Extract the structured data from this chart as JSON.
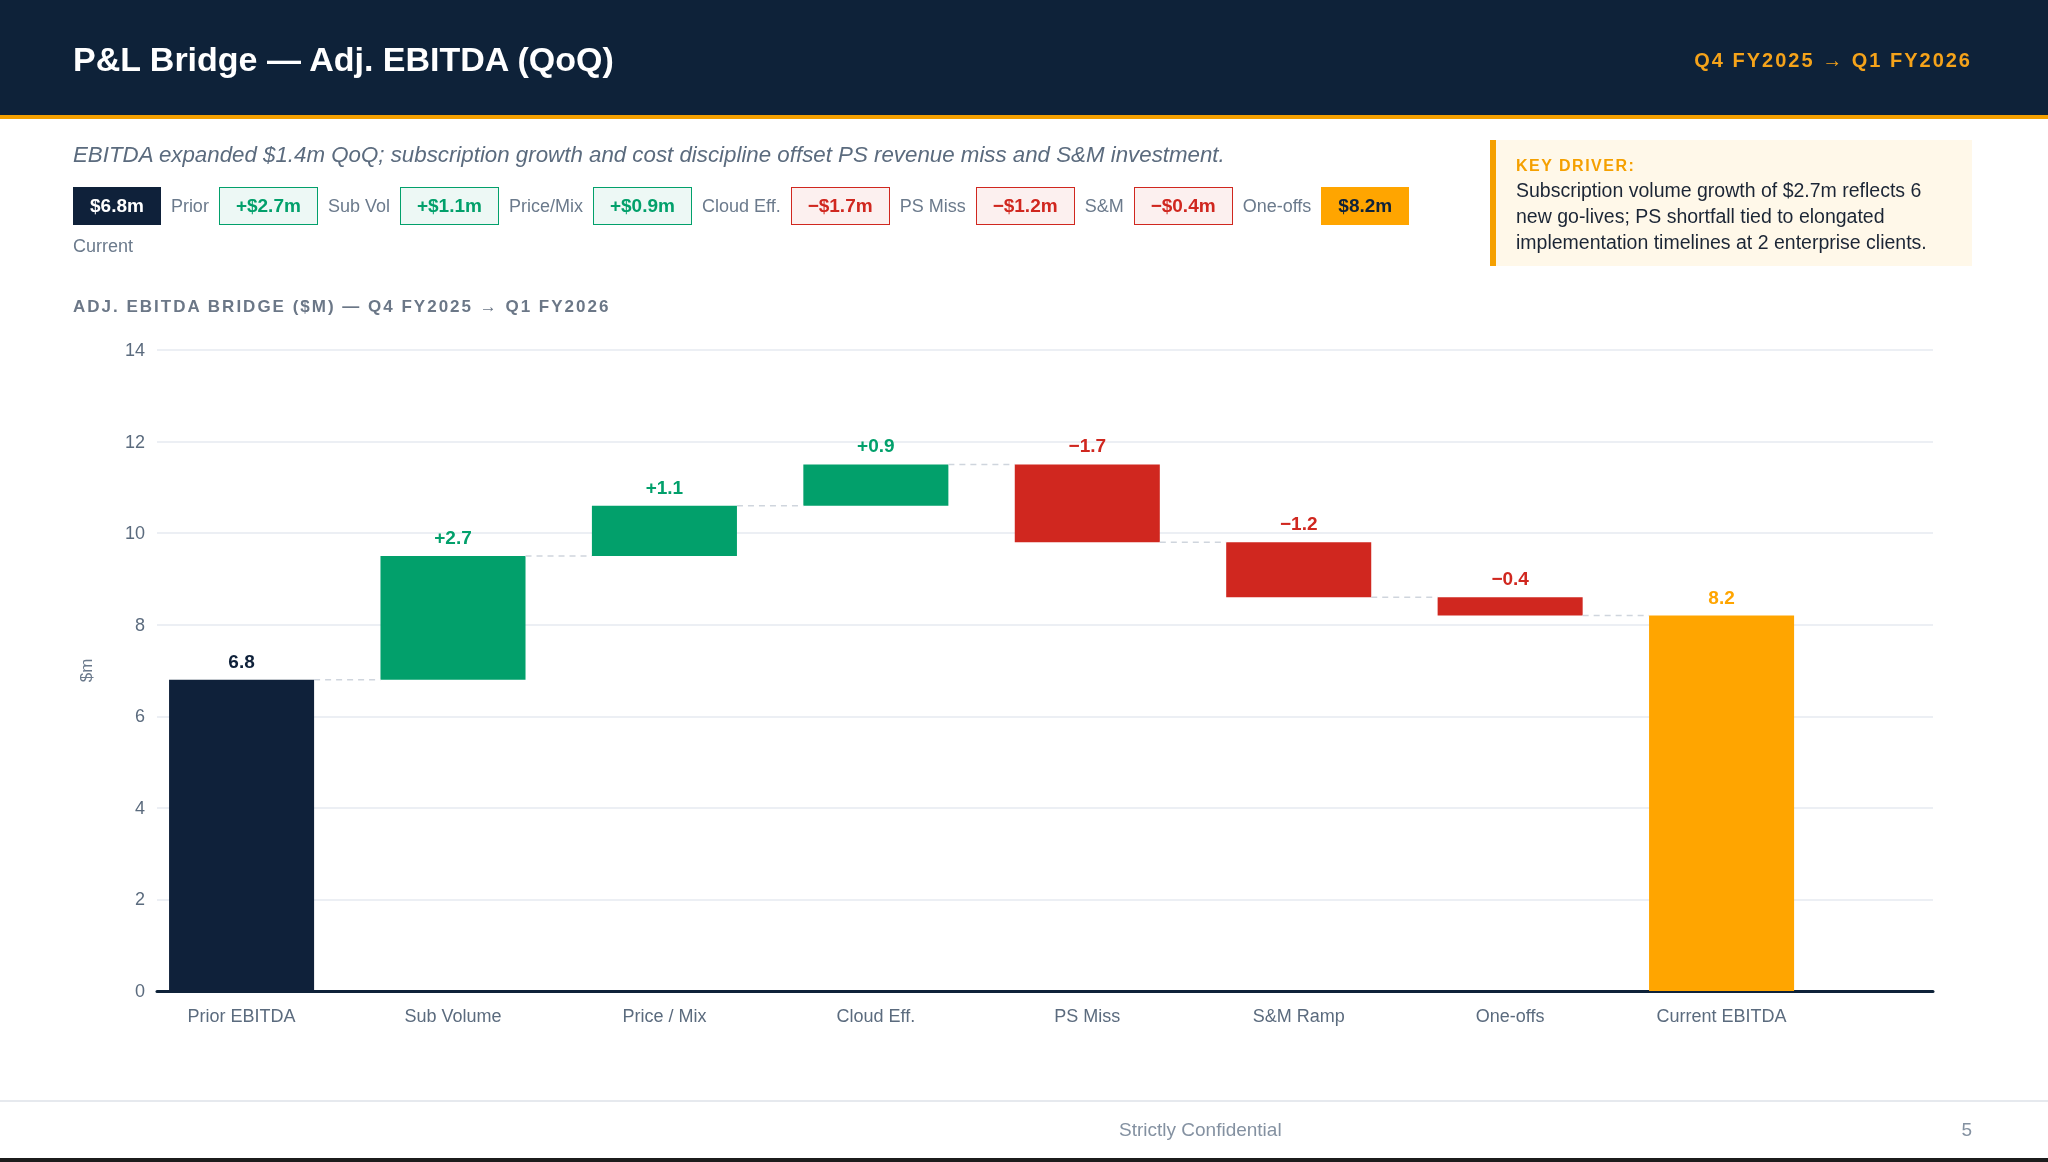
{
  "chart_data": {
    "type": "bar",
    "title": "P&L Bridge — Adj. EBITDA (QoQ)",
    "subtitle": "EBITDA expanded $1.4m QoQ; subscription growth and cost discipline offset PS revenue miss and S&M investment.",
    "annotations": [
      "Q4 FY2025 → Q1 FY2026",
      "$6.8m",
      "Prior",
      "+$2.7m",
      "Sub Vol",
      "+$1.1m",
      "Price/Mix",
      "+$0.9m",
      "Cloud Eff.",
      "−$1.7m",
      "PS Miss",
      "−$1.2m",
      "S&M",
      "−$0.4m",
      "One-offs",
      "$8.2m",
      "Current",
      "KEY DRIVER:",
      "Subscription volume growth of $2.7m reflects 6 new go-lives; PS shortfall tied to elongated implementation timelines at 2 enterprise clients.",
      "ADJ. EBITDA BRIDGE ($M) — Q4 FY2025 → Q1 FY2026",
      "Strictly Confidential",
      "5"
    ],
    "categories": [
      "Prior EBITDA",
      "Sub Volume",
      "Price / Mix",
      "Cloud Eff.",
      "PS Miss",
      "S&M Ramp",
      "One-offs",
      "Current EBITDA"
    ],
    "values": [
      6.8,
      2.7,
      1.1,
      0.9,
      -1.7,
      -1.2,
      -0.4,
      8.2
    ],
    "base": [
      0,
      6.8,
      9.5,
      10.6,
      11.5,
      9.8,
      8.6,
      0
    ],
    "colors": [
      "#0f213a",
      "#02a06b",
      "#02a06b",
      "#02a06b",
      "#d0271f",
      "#d0271f",
      "#d0271f",
      "#ffa500"
    ],
    "value_labels": [
      "6.8",
      "+2.7",
      "+1.1",
      "+0.9",
      "−1.7",
      "−1.2",
      "−0.4",
      "8.2"
    ],
    "ylabel": "$m",
    "ylim": [
      0,
      14
    ],
    "yticks": [
      0,
      2,
      4,
      6,
      8,
      10,
      12,
      14
    ],
    "grid": "y"
  }
}
